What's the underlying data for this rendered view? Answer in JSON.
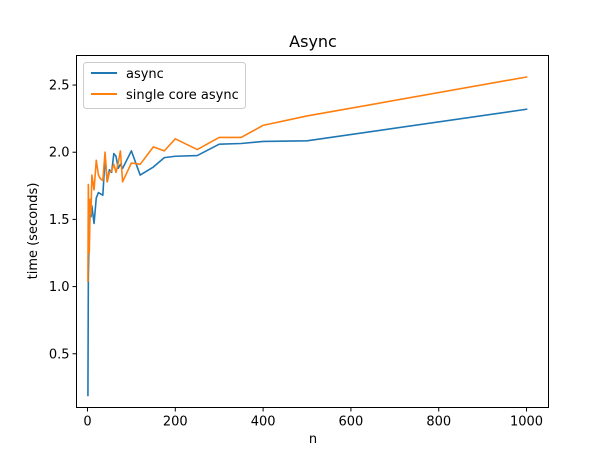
{
  "chart_data": {
    "type": "line",
    "title": "Async",
    "xlabel": "n",
    "ylabel": "time (seconds)",
    "xlim": [
      -25,
      1050
    ],
    "ylim": [
      0.1,
      2.72
    ],
    "xticks": [
      0,
      200,
      400,
      600,
      800,
      1000
    ],
    "yticks": [
      0.5,
      1.0,
      1.5,
      2.0,
      2.5
    ],
    "xtick_labels": [
      "0",
      "200",
      "400",
      "600",
      "800",
      "1000"
    ],
    "ytick_labels": [
      "0.5",
      "1.0",
      "1.5",
      "2.0",
      "2.5"
    ],
    "grid": false,
    "legend_position": "upper-left",
    "series": [
      {
        "name": "async",
        "color": "#1f77b4",
        "x": [
          1,
          2,
          3,
          4,
          5,
          6,
          8,
          10,
          15,
          20,
          25,
          30,
          35,
          40,
          45,
          50,
          55,
          60,
          65,
          70,
          75,
          80,
          100,
          120,
          150,
          175,
          200,
          250,
          300,
          350,
          400,
          500,
          1000
        ],
        "y": [
          0.19,
          1.07,
          1.25,
          1.36,
          1.45,
          1.56,
          1.52,
          1.6,
          1.47,
          1.66,
          1.7,
          1.69,
          1.68,
          1.96,
          1.78,
          1.87,
          1.85,
          1.99,
          1.97,
          1.88,
          1.91,
          1.88,
          2.01,
          1.83,
          1.89,
          1.96,
          1.97,
          1.975,
          2.06,
          2.065,
          2.08,
          2.085,
          2.32
        ]
      },
      {
        "name": "single core async",
        "color": "#ff7f0e",
        "x": [
          1,
          2,
          3,
          4,
          5,
          6,
          8,
          10,
          15,
          20,
          25,
          30,
          35,
          40,
          45,
          50,
          55,
          60,
          65,
          70,
          75,
          80,
          100,
          120,
          150,
          175,
          200,
          250,
          300,
          350,
          400,
          500,
          1000
        ],
        "y": [
          1.04,
          1.76,
          1.55,
          1.25,
          1.4,
          1.65,
          1.54,
          1.83,
          1.72,
          1.94,
          1.83,
          1.8,
          1.79,
          2.0,
          1.78,
          1.85,
          1.86,
          1.91,
          1.85,
          1.92,
          2.01,
          1.78,
          1.92,
          1.91,
          2.04,
          2.01,
          2.1,
          2.02,
          2.11,
          2.11,
          2.2,
          2.27,
          2.56
        ]
      }
    ]
  }
}
